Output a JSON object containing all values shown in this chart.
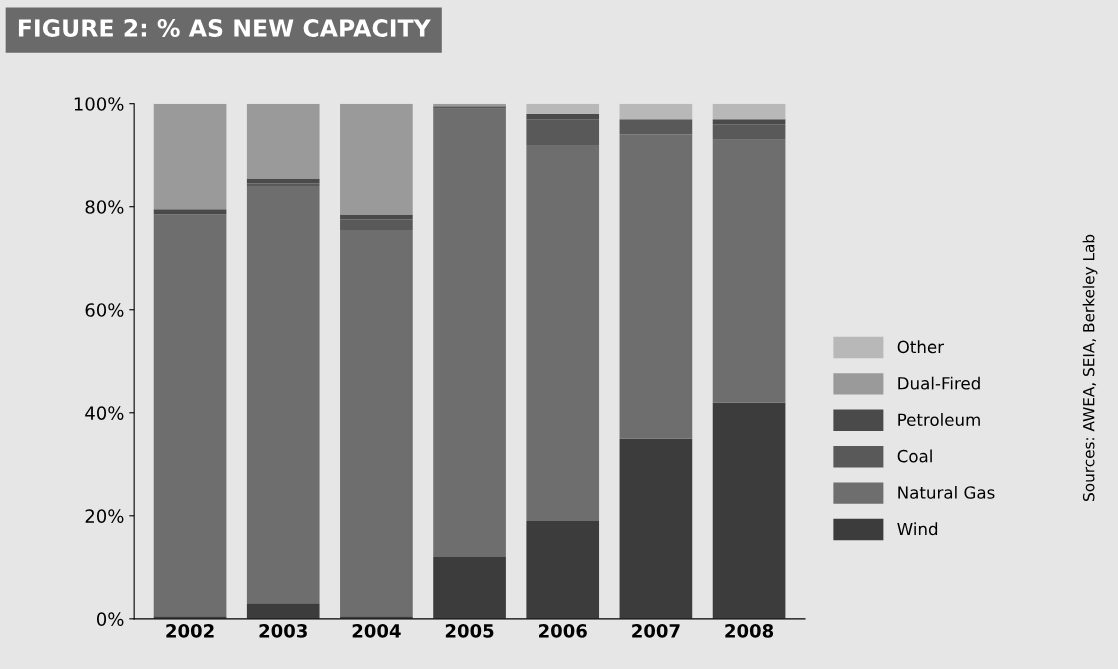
{
  "chart_data": {
    "type": "bar",
    "stacked": true,
    "title": "FIGURE 2: % AS NEW CAPACITY",
    "categories": [
      "2002",
      "2003",
      "2004",
      "2005",
      "2006",
      "2007",
      "2008"
    ],
    "series": [
      {
        "name": "Wind",
        "color": "#3c3c3c",
        "values": [
          0.5,
          3,
          0.5,
          12,
          19,
          35,
          42
        ]
      },
      {
        "name": "Natural Gas",
        "color": "#6e6e6e",
        "values": [
          78,
          81,
          75,
          87,
          73,
          59,
          51
        ]
      },
      {
        "name": "Coal",
        "color": "#595959",
        "values": [
          0,
          0.5,
          2,
          0.5,
          5,
          3,
          3
        ]
      },
      {
        "name": "Petroleum",
        "color": "#4a4a4a",
        "values": [
          1,
          1,
          1,
          0,
          1,
          0,
          1
        ]
      },
      {
        "name": "Dual-Fired",
        "color": "#9a9a9a",
        "values": [
          20.5,
          14.5,
          21.5,
          0.5,
          0,
          0,
          0
        ]
      },
      {
        "name": "Other",
        "color": "#b8b8b8",
        "values": [
          0,
          0,
          0,
          0,
          2,
          3,
          3
        ]
      }
    ],
    "ylim": [
      0,
      100
    ],
    "yticks": [
      {
        "value": 0,
        "label": "0%"
      },
      {
        "value": 20,
        "label": "20%"
      },
      {
        "value": 40,
        "label": "40%"
      },
      {
        "value": 60,
        "label": "60%"
      },
      {
        "value": 80,
        "label": "80%"
      },
      {
        "value": 100,
        "label": "100%"
      }
    ],
    "grid": false,
    "legend": "right",
    "annotations": [
      "Sources: AWEA, SEIA, Berkeley Lab"
    ]
  }
}
